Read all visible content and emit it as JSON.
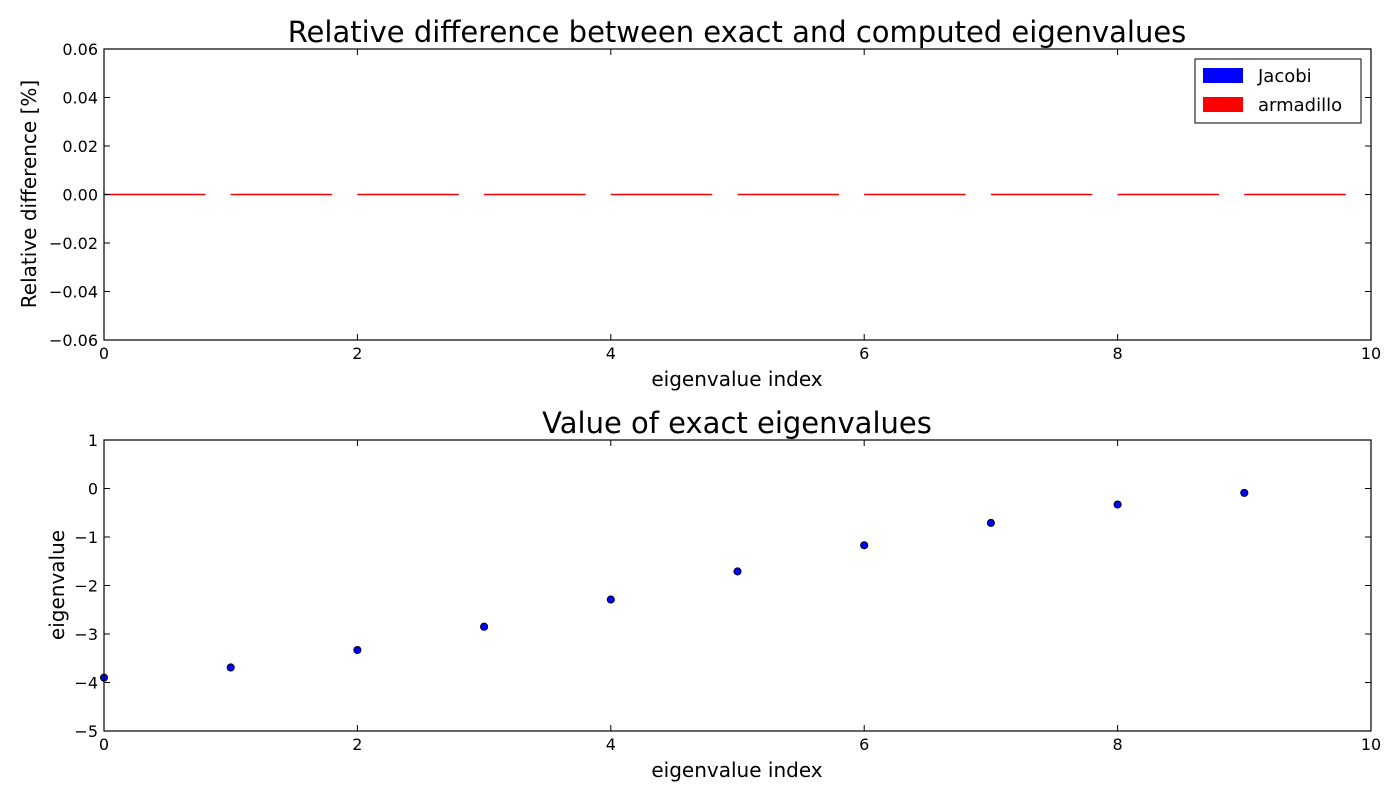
{
  "chart_data": [
    {
      "type": "bar",
      "title": "Relative difference between exact and computed eigenvalues",
      "xlabel": "eigenvalue index",
      "ylabel": "Relative difference [%]",
      "xlim": [
        0,
        10
      ],
      "ylim": [
        -0.06,
        0.06
      ],
      "x_ticks": [
        "0",
        "2",
        "4",
        "6",
        "8",
        "10"
      ],
      "y_ticks": [
        "0.06",
        "0.04",
        "0.02",
        "0.00",
        "−0.02",
        "−0.04",
        "−0.06"
      ],
      "categories": [
        0,
        1,
        2,
        3,
        4,
        5,
        6,
        7,
        8,
        9
      ],
      "series": [
        {
          "name": "Jacobi",
          "color": "#0000ff",
          "values": [
            0,
            0,
            0,
            0,
            0,
            0,
            0,
            0,
            0,
            0
          ]
        },
        {
          "name": "armadillo",
          "color": "#ff0000",
          "values": [
            0,
            0,
            0,
            0,
            0,
            0,
            0,
            0,
            0,
            0
          ]
        }
      ],
      "legend": "top-right",
      "grid": false
    },
    {
      "type": "scatter",
      "title": "Value of exact eigenvalues",
      "xlabel": "eigenvalue index",
      "ylabel": "eigenvalue",
      "xlim": [
        0,
        10
      ],
      "ylim": [
        -5,
        1
      ],
      "x_ticks": [
        "0",
        "2",
        "4",
        "6",
        "8",
        "10"
      ],
      "y_ticks": [
        "1",
        "0",
        "−1",
        "−2",
        "−3",
        "−4",
        "−5"
      ],
      "x": [
        0,
        1,
        2,
        3,
        4,
        5,
        6,
        7,
        8,
        9
      ],
      "y": [
        -3.9,
        -3.69,
        -3.33,
        -2.85,
        -2.29,
        -1.71,
        -1.17,
        -0.71,
        -0.33,
        -0.09
      ],
      "color": "#0000ff",
      "grid": false
    }
  ]
}
